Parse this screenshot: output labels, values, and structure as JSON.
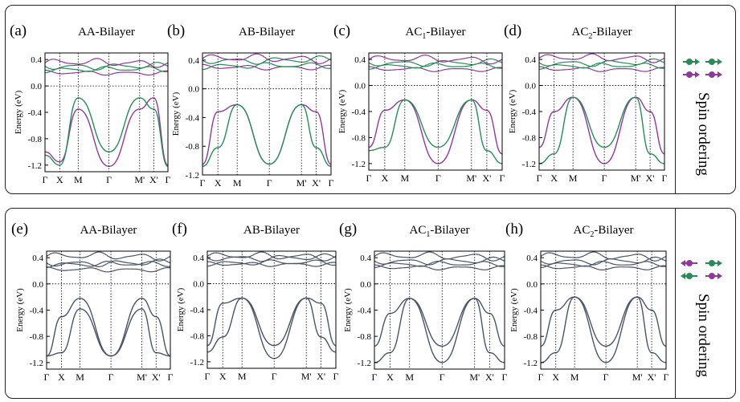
{
  "legend_label": "Spin ordering",
  "colors": {
    "purple": "#8e3a99",
    "green": "#2a8a58",
    "gray": "#4a5566"
  },
  "spin_arrows_top": [
    [
      "green",
      "green"
    ],
    [
      "purple",
      "purple"
    ]
  ],
  "spin_arrows_bottom": [
    [
      "purple",
      "green"
    ],
    [
      "green",
      "purple"
    ]
  ],
  "panels": [
    {
      "letter": "(a)",
      "title": "AA-Bilayer",
      "sub": "",
      "title_suffix": "",
      "ylabel": "Energy (eV)",
      "ylim": [
        -1.3,
        0.5
      ],
      "yticks": [
        "0.4",
        "0.0",
        "-0.4",
        "-0.8",
        "-1.2"
      ],
      "yvals": [
        0.4,
        0.0,
        -0.4,
        -0.8,
        -1.2
      ],
      "style": "split",
      "top_a": [
        0.2,
        0.3
      ],
      "top_b": [
        0.25,
        0.35
      ],
      "val_a": [
        -1.0,
        -1.15,
        -0.35,
        -1.22,
        -0.35,
        -0.18,
        -1.2
      ],
      "val_b": [
        -1.05,
        -1.2,
        -0.18,
        -1.0,
        -0.18,
        -0.35,
        -1.22
      ]
    },
    {
      "letter": "(b)",
      "title": "AB-Bilayer",
      "sub": "",
      "title_suffix": "",
      "ylabel": "Energy (eV)",
      "ylim": [
        -1.2,
        0.5
      ],
      "yticks": [
        "0.4",
        "0.0",
        "-0.4",
        "-0.8",
        "-1.2"
      ],
      "yvals": [
        0.4,
        0.0,
        -0.4,
        -0.8,
        -1.2
      ],
      "style": "split",
      "top_a": [
        0.3,
        0.4
      ],
      "top_b": [
        0.32,
        0.42
      ],
      "val_a": [
        -1.05,
        -0.32,
        -0.22,
        -1.05,
        -0.22,
        -0.32,
        -1.05
      ],
      "val_b": [
        -1.08,
        -0.82,
        -0.22,
        -1.05,
        -0.22,
        -0.82,
        -1.08
      ]
    },
    {
      "letter": "(c)",
      "title": "-Bilayer",
      "sub": "1",
      "title_suffix": "AC",
      "ylabel": "Energy (eV)",
      "ylim": [
        -1.3,
        0.5
      ],
      "yticks": [
        "0.4",
        "0.0",
        "-0.4",
        "-0.8",
        "-1.2"
      ],
      "yvals": [
        0.4,
        0.0,
        -0.4,
        -0.8,
        -1.2
      ],
      "style": "split",
      "top_a": [
        0.25,
        0.35
      ],
      "top_b": [
        0.3,
        0.4
      ],
      "val_a": [
        -0.95,
        -0.38,
        -0.22,
        -1.2,
        -0.22,
        -0.38,
        -1.05
      ],
      "val_b": [
        -1.0,
        -0.95,
        -0.22,
        -0.95,
        -0.22,
        -1.0,
        -1.2
      ]
    },
    {
      "letter": "(d)",
      "title": "-Bilayer",
      "sub": "2",
      "title_suffix": "AC",
      "ylabel": "Energy (eV)",
      "ylim": [
        -1.3,
        0.5
      ],
      "yticks": [
        "0.4",
        "0.0",
        "-0.4",
        "-0.8",
        "-1.2"
      ],
      "yvals": [
        0.4,
        0.0,
        -0.4,
        -0.8,
        -1.2
      ],
      "style": "split",
      "top_a": [
        0.25,
        0.35
      ],
      "top_b": [
        0.3,
        0.42
      ],
      "val_a": [
        -0.95,
        -0.4,
        -0.18,
        -1.2,
        -0.18,
        -0.4,
        -1.05
      ],
      "val_b": [
        -1.2,
        -1.05,
        -0.18,
        -0.95,
        -0.18,
        -1.05,
        -1.2
      ]
    },
    {
      "letter": "(e)",
      "title": "AA-Bilayer",
      "sub": "",
      "title_suffix": "",
      "ylabel": "Energy (eV)",
      "ylim": [
        -1.3,
        0.5
      ],
      "yticks": [
        "0.4",
        "0.0",
        "-0.4",
        "-0.8",
        "-1.2"
      ],
      "yvals": [
        0.4,
        0.0,
        -0.4,
        -0.8,
        -1.2
      ],
      "style": "degenerate",
      "top_a": [
        0.22,
        0.32
      ],
      "top_b": [
        0.3,
        0.42
      ],
      "val_a": [
        -1.1,
        -0.5,
        -0.22,
        -1.1,
        -0.22,
        -0.5,
        -1.1
      ],
      "val_b": [
        -1.1,
        -1.05,
        -0.38,
        -1.1,
        -0.38,
        -1.05,
        -1.1
      ]
    },
    {
      "letter": "(f)",
      "title": "AB-Bilayer",
      "sub": "",
      "title_suffix": "",
      "ylabel": "Energy (eV)",
      "ylim": [
        -1.3,
        0.5
      ],
      "yticks": [
        "0.4",
        "0.0",
        "-0.4",
        "-0.8",
        "-1.2"
      ],
      "yvals": [
        0.4,
        0.0,
        -0.4,
        -0.8,
        -1.2
      ],
      "style": "degenerate",
      "top_a": [
        0.3,
        0.4
      ],
      "top_b": [
        0.32,
        0.42
      ],
      "val_a": [
        -0.95,
        -0.3,
        -0.22,
        -0.95,
        -0.22,
        -0.3,
        -0.95
      ],
      "val_b": [
        -1.05,
        -0.82,
        -0.22,
        -1.15,
        -0.22,
        -0.82,
        -1.05
      ]
    },
    {
      "letter": "(g)",
      "title": "-Bilayer",
      "sub": "1",
      "title_suffix": "AC",
      "ylabel": "Energy (eV)",
      "ylim": [
        -1.3,
        0.5
      ],
      "yticks": [
        "0.4",
        "0.0",
        "-0.4",
        "-0.8",
        "-1.2"
      ],
      "yvals": [
        0.4,
        0.0,
        -0.4,
        -0.8,
        -1.2
      ],
      "style": "degenerate",
      "top_a": [
        0.25,
        0.35
      ],
      "top_b": [
        0.3,
        0.42
      ],
      "val_a": [
        -0.95,
        -0.45,
        -0.22,
        -0.95,
        -0.22,
        -0.45,
        -0.95
      ],
      "val_b": [
        -1.2,
        -1.05,
        -0.22,
        -1.2,
        -0.22,
        -1.05,
        -1.2
      ]
    },
    {
      "letter": "(h)",
      "title": "-Bilayer",
      "sub": "2",
      "title_suffix": "AC",
      "ylabel": "Energy (eV)",
      "ylim": [
        -1.3,
        0.5
      ],
      "yticks": [
        "0.4",
        "0.0",
        "-0.4",
        "-0.8",
        "-1.2"
      ],
      "yvals": [
        0.4,
        0.0,
        -0.4,
        -0.8,
        -1.2
      ],
      "style": "degenerate",
      "top_a": [
        0.25,
        0.35
      ],
      "top_b": [
        0.3,
        0.42
      ],
      "val_a": [
        -0.95,
        -0.4,
        -0.2,
        -0.95,
        -0.2,
        -0.4,
        -0.95
      ],
      "val_b": [
        -1.2,
        -1.05,
        -0.2,
        -1.2,
        -0.2,
        -1.05,
        -1.2
      ]
    }
  ],
  "kpath": [
    "Γ",
    "X",
    "M",
    "Γ",
    "M'",
    "X'",
    "Γ"
  ],
  "chart_data": [
    {
      "type": "line",
      "panel": "(a)",
      "title": "AA-Bilayer",
      "ylabel": "Energy (eV)",
      "ylim": [
        -1.3,
        0.5
      ],
      "x": [
        "Γ",
        "X",
        "M",
        "Γ",
        "M'",
        "X'",
        "Γ"
      ],
      "series": [
        {
          "values": [
            -1.0,
            -1.15,
            -0.35,
            -1.22,
            -0.35,
            -0.18,
            -1.2
          ]
        },
        {
          "values": [
            -1.05,
            -1.2,
            -0.18,
            -1.0,
            -0.18,
            -0.35,
            -1.22
          ]
        }
      ]
    },
    {
      "type": "line",
      "panel": "(b)",
      "title": "AB-Bilayer",
      "ylabel": "Energy (eV)",
      "ylim": [
        -1.2,
        0.5
      ],
      "x": [
        "Γ",
        "X",
        "M",
        "Γ",
        "M'",
        "X'",
        "Γ"
      ],
      "series": [
        {
          "values": [
            -1.05,
            -0.32,
            -0.22,
            -1.05,
            -0.22,
            -0.32,
            -1.05
          ]
        },
        {
          "values": [
            -1.08,
            -0.82,
            -0.22,
            -1.05,
            -0.22,
            -0.82,
            -1.08
          ]
        }
      ]
    },
    {
      "type": "line",
      "panel": "(c)",
      "title": "AC1-Bilayer",
      "ylabel": "Energy (eV)",
      "ylim": [
        -1.3,
        0.5
      ],
      "x": [
        "Γ",
        "X",
        "M",
        "Γ",
        "M'",
        "X'",
        "Γ"
      ],
      "series": [
        {
          "values": [
            -0.95,
            -0.38,
            -0.22,
            -1.2,
            -0.22,
            -0.38,
            -1.05
          ]
        },
        {
          "values": [
            -1.0,
            -0.95,
            -0.22,
            -0.95,
            -0.22,
            -1.0,
            -1.2
          ]
        }
      ]
    },
    {
      "type": "line",
      "panel": "(d)",
      "title": "AC2-Bilayer",
      "ylabel": "Energy (eV)",
      "ylim": [
        -1.3,
        0.5
      ],
      "x": [
        "Γ",
        "X",
        "M",
        "Γ",
        "M'",
        "X'",
        "Γ"
      ],
      "series": [
        {
          "values": [
            -0.95,
            -0.4,
            -0.18,
            -1.2,
            -0.18,
            -0.4,
            -1.05
          ]
        },
        {
          "values": [
            -1.2,
            -1.05,
            -0.18,
            -0.95,
            -0.18,
            -1.05,
            -1.2
          ]
        }
      ]
    },
    {
      "type": "line",
      "panel": "(e)",
      "title": "AA-Bilayer",
      "ylabel": "Energy (eV)",
      "ylim": [
        -1.3,
        0.5
      ],
      "x": [
        "Γ",
        "X",
        "M",
        "Γ",
        "M'",
        "X'",
        "Γ"
      ],
      "series": [
        {
          "values": [
            -1.1,
            -0.5,
            -0.22,
            -1.1,
            -0.22,
            -0.5,
            -1.1
          ]
        },
        {
          "values": [
            -1.1,
            -1.05,
            -0.38,
            -1.1,
            -0.38,
            -1.05,
            -1.1
          ]
        }
      ]
    },
    {
      "type": "line",
      "panel": "(f)",
      "title": "AB-Bilayer",
      "ylabel": "Energy (eV)",
      "ylim": [
        -1.3,
        0.5
      ],
      "x": [
        "Γ",
        "X",
        "M",
        "Γ",
        "M'",
        "X'",
        "Γ"
      ],
      "series": [
        {
          "values": [
            -0.95,
            -0.3,
            -0.22,
            -0.95,
            -0.22,
            -0.3,
            -0.95
          ]
        },
        {
          "values": [
            -1.05,
            -0.82,
            -0.22,
            -1.15,
            -0.22,
            -0.82,
            -1.05
          ]
        }
      ]
    },
    {
      "type": "line",
      "panel": "(g)",
      "title": "AC1-Bilayer",
      "ylabel": "Energy (eV)",
      "ylim": [
        -1.3,
        0.5
      ],
      "x": [
        "Γ",
        "X",
        "M",
        "Γ",
        "M'",
        "X'",
        "Γ"
      ],
      "series": [
        {
          "values": [
            -0.95,
            -0.45,
            -0.22,
            -0.95,
            -0.22,
            -0.45,
            -0.95
          ]
        },
        {
          "values": [
            -1.2,
            -1.05,
            -0.22,
            -1.2,
            -0.22,
            -1.05,
            -1.2
          ]
        }
      ]
    },
    {
      "type": "line",
      "panel": "(h)",
      "title": "AC2-Bilayer",
      "ylabel": "Energy (eV)",
      "ylim": [
        -1.3,
        0.5
      ],
      "x": [
        "Γ",
        "X",
        "M",
        "Γ",
        "M'",
        "X'",
        "Γ"
      ],
      "series": [
        {
          "values": [
            -0.95,
            -0.4,
            -0.2,
            -0.95,
            -0.2,
            -0.4,
            -0.95
          ]
        },
        {
          "values": [
            -1.2,
            -1.05,
            -0.2,
            -1.2,
            -0.2,
            -1.05,
            -1.2
          ]
        }
      ]
    }
  ]
}
